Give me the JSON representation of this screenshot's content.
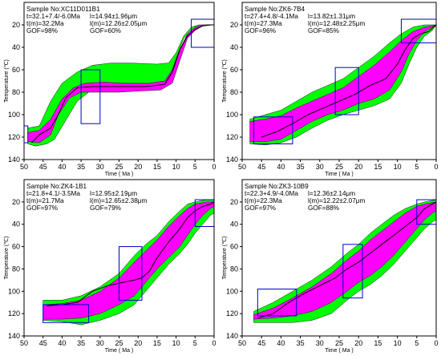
{
  "colors": {
    "good_envelope": "#00ff00",
    "acceptable_envelope": "#ff00ff",
    "best_fit_path": "#000000",
    "constraint_box": "#0000cc",
    "frame": "#000000"
  },
  "chart_data": [
    {
      "type": "line",
      "info": {
        "sample": "Sample No:XC11D011B1",
        "t": "t=32.1+7.4/-6.0Ma",
        "tm": "t(m)=32.2Ma",
        "gof_age": "GOF=98%",
        "l": "l=14.94±1.96μm",
        "lm": "l(m)=12.26±2.05μm",
        "gof_len": "GOF=60%"
      },
      "xlabel": "Time ( Ma )",
      "ylabel": "Temperature (℃)",
      "xlim": [
        50,
        0
      ],
      "ylim": [
        140,
        0
      ],
      "xticks": [
        "50",
        "45",
        "40",
        "35",
        "30",
        "25",
        "20",
        "15",
        "10",
        "5",
        "0"
      ],
      "yticks": [
        "140",
        "120",
        "100",
        "80",
        "60",
        "40",
        "20"
      ],
      "green_upper": [
        [
          49,
          126
        ],
        [
          47,
          128
        ],
        [
          44,
          126
        ],
        [
          42,
          122
        ],
        [
          39,
          105
        ],
        [
          36,
          88
        ],
        [
          33,
          80
        ],
        [
          30,
          76
        ],
        [
          25,
          75
        ],
        [
          20,
          74
        ],
        [
          15,
          72
        ],
        [
          12,
          70
        ],
        [
          10,
          50
        ],
        [
          8,
          32
        ],
        [
          6,
          25
        ],
        [
          4,
          22
        ],
        [
          2,
          20
        ],
        [
          0,
          20
        ]
      ],
      "green_lower": [
        [
          49,
          112
        ],
        [
          46,
          110
        ],
        [
          43,
          88
        ],
        [
          40,
          72
        ],
        [
          36,
          62
        ],
        [
          32,
          56
        ],
        [
          27,
          54
        ],
        [
          22,
          54
        ],
        [
          15,
          55
        ],
        [
          12,
          54
        ],
        [
          10,
          45
        ],
        [
          8,
          30
        ],
        [
          6,
          22
        ],
        [
          4,
          20
        ],
        [
          0,
          20
        ]
      ],
      "pink_upper": [
        [
          49,
          124
        ],
        [
          46,
          125
        ],
        [
          43,
          118
        ],
        [
          41,
          100
        ],
        [
          38,
          85
        ],
        [
          35,
          80
        ],
        [
          30,
          80
        ],
        [
          25,
          80
        ],
        [
          20,
          79
        ],
        [
          14,
          78
        ],
        [
          11,
          72
        ],
        [
          9,
          52
        ],
        [
          7,
          32
        ],
        [
          5,
          25
        ],
        [
          3,
          21
        ],
        [
          0,
          20
        ]
      ],
      "pink_lower": [
        [
          49,
          116
        ],
        [
          46,
          114
        ],
        [
          43,
          104
        ],
        [
          40,
          86
        ],
        [
          37,
          76
        ],
        [
          34,
          72
        ],
        [
          29,
          71
        ],
        [
          24,
          72
        ],
        [
          17,
          72
        ],
        [
          13,
          70
        ],
        [
          11,
          60
        ],
        [
          9,
          42
        ],
        [
          7,
          28
        ],
        [
          5,
          22
        ],
        [
          3,
          20
        ],
        [
          0,
          20
        ]
      ],
      "best_path": [
        [
          48,
          125
        ],
        [
          46,
          118
        ],
        [
          43,
          112
        ],
        [
          41,
          100
        ],
        [
          39,
          85
        ],
        [
          36,
          76
        ],
        [
          32,
          75
        ],
        [
          25,
          75
        ],
        [
          18,
          75
        ],
        [
          13,
          73
        ],
        [
          11,
          62
        ],
        [
          9,
          42
        ],
        [
          7,
          30
        ],
        [
          5,
          24
        ],
        [
          3,
          21
        ],
        [
          1,
          20
        ],
        [
          0,
          20
        ]
      ],
      "boxes": [
        [
          50,
          49,
          110,
          125
        ],
        [
          35,
          30,
          60,
          108
        ],
        [
          6,
          0,
          15,
          40
        ]
      ]
    },
    {
      "type": "line",
      "info": {
        "sample": "Sample No:ZK6-7B4",
        "t": "t=27.4+4.8/-4.1Ma",
        "tm": "t(m)=27.3Ma",
        "gof_age": "GOF=96%",
        "l": "l=13.82±1.31μm",
        "lm": "l(m)=12.48±2.25μm",
        "gof_len": "GOF=85%"
      },
      "xlabel": "Time ( Ma )",
      "ylabel": "Temperature (℃)",
      "xlim": [
        50,
        0
      ],
      "ylim": [
        140,
        0
      ],
      "xticks": [
        "50",
        "45",
        "40",
        "35",
        "30",
        "25",
        "20",
        "15",
        "10",
        "5",
        "0"
      ],
      "yticks": [
        "140",
        "120",
        "100",
        "80",
        "60",
        "40",
        "20"
      ],
      "green_upper": [
        [
          48,
          126
        ],
        [
          44,
          127
        ],
        [
          40,
          125
        ],
        [
          36,
          120
        ],
        [
          32,
          112
        ],
        [
          28,
          105
        ],
        [
          24,
          100
        ],
        [
          20,
          96
        ],
        [
          16,
          92
        ],
        [
          12,
          86
        ],
        [
          9,
          72
        ],
        [
          7,
          55
        ],
        [
          5,
          40
        ],
        [
          3,
          30
        ],
        [
          1,
          25
        ],
        [
          0,
          20
        ]
      ],
      "green_lower": [
        [
          48,
          104
        ],
        [
          44,
          100
        ],
        [
          40,
          96
        ],
        [
          36,
          88
        ],
        [
          32,
          80
        ],
        [
          28,
          74
        ],
        [
          24,
          68
        ],
        [
          20,
          58
        ],
        [
          16,
          48
        ],
        [
          12,
          36
        ],
        [
          9,
          28
        ],
        [
          6,
          22
        ],
        [
          3,
          20
        ],
        [
          0,
          20
        ]
      ],
      "pink_upper": [
        [
          48,
          124
        ],
        [
          44,
          124
        ],
        [
          40,
          122
        ],
        [
          36,
          114
        ],
        [
          32,
          106
        ],
        [
          28,
          100
        ],
        [
          24,
          96
        ],
        [
          20,
          90
        ],
        [
          16,
          86
        ],
        [
          12,
          78
        ],
        [
          9,
          62
        ],
        [
          7,
          46
        ],
        [
          5,
          34
        ],
        [
          3,
          26
        ],
        [
          0,
          20
        ]
      ],
      "pink_lower": [
        [
          48,
          106
        ],
        [
          44,
          104
        ],
        [
          40,
          101
        ],
        [
          36,
          94
        ],
        [
          32,
          88
        ],
        [
          28,
          82
        ],
        [
          24,
          76
        ],
        [
          20,
          66
        ],
        [
          16,
          56
        ],
        [
          12,
          44
        ],
        [
          9,
          34
        ],
        [
          6,
          26
        ],
        [
          3,
          22
        ],
        [
          0,
          20
        ]
      ],
      "best_path": [
        [
          45,
          120
        ],
        [
          41,
          115
        ],
        [
          37,
          108
        ],
        [
          33,
          100
        ],
        [
          29,
          94
        ],
        [
          25,
          88
        ],
        [
          21,
          82
        ],
        [
          17,
          74
        ],
        [
          13,
          68
        ],
        [
          10,
          55
        ],
        [
          8,
          42
        ],
        [
          6,
          32
        ],
        [
          4,
          28
        ],
        [
          2,
          26
        ],
        [
          0,
          20
        ]
      ],
      "boxes": [
        [
          47,
          37,
          102,
          126
        ],
        [
          26,
          20,
          58,
          100
        ],
        [
          9,
          0,
          15,
          36
        ]
      ]
    },
    {
      "type": "line",
      "info": {
        "sample": "Sample No:ZK4-1B1",
        "t": "t=21.8+4.1/-3.5Ma",
        "tm": "t(m)=21.7Ma",
        "gof_age": "GOF=97%",
        "l": "l=12.95±2.19μm",
        "lm": "l(m)=12.65±2.38μm",
        "gof_len": "GOF=79%"
      },
      "xlabel": "Time ( Ma )",
      "ylabel": "Temperature (℃)",
      "xlim": [
        50,
        0
      ],
      "ylim": [
        140,
        0
      ],
      "xticks": [
        "50",
        "45",
        "40",
        "35",
        "30",
        "25",
        "20",
        "15",
        "10",
        "5",
        "0"
      ],
      "yticks": [
        "140",
        "120",
        "100",
        "80",
        "60",
        "40",
        "20"
      ],
      "green_upper": [
        [
          45,
          126
        ],
        [
          40,
          127
        ],
        [
          35,
          130
        ],
        [
          30,
          126
        ],
        [
          25,
          120
        ],
        [
          21,
          112
        ],
        [
          18,
          100
        ],
        [
          15,
          88
        ],
        [
          12,
          76
        ],
        [
          9,
          66
        ],
        [
          7,
          58
        ],
        [
          5,
          48
        ],
        [
          3,
          40
        ],
        [
          1,
          32
        ],
        [
          0,
          30
        ]
      ],
      "green_lower": [
        [
          45,
          108
        ],
        [
          40,
          108
        ],
        [
          35,
          104
        ],
        [
          30,
          96
        ],
        [
          25,
          84
        ],
        [
          21,
          68
        ],
        [
          18,
          58
        ],
        [
          15,
          50
        ],
        [
          12,
          38
        ],
        [
          9,
          28
        ],
        [
          7,
          22
        ],
        [
          5,
          20
        ],
        [
          2,
          18
        ],
        [
          0,
          18
        ]
      ],
      "pink_upper": [
        [
          45,
          125
        ],
        [
          40,
          125
        ],
        [
          35,
          124
        ],
        [
          30,
          120
        ],
        [
          25,
          112
        ],
        [
          21,
          104
        ],
        [
          18,
          92
        ],
        [
          15,
          80
        ],
        [
          12,
          70
        ],
        [
          9,
          60
        ],
        [
          7,
          50
        ],
        [
          5,
          40
        ],
        [
          3,
          32
        ],
        [
          1,
          26
        ],
        [
          0,
          24
        ]
      ],
      "pink_lower": [
        [
          45,
          112
        ],
        [
          40,
          111
        ],
        [
          35,
          108
        ],
        [
          30,
          100
        ],
        [
          25,
          88
        ],
        [
          21,
          74
        ],
        [
          18,
          64
        ],
        [
          15,
          54
        ],
        [
          12,
          42
        ],
        [
          9,
          32
        ],
        [
          7,
          26
        ],
        [
          5,
          22
        ],
        [
          2,
          20
        ],
        [
          0,
          20
        ]
      ],
      "best_path": [
        [
          44,
          113
        ],
        [
          40,
          112
        ],
        [
          36,
          110
        ],
        [
          32,
          100
        ],
        [
          28,
          95
        ],
        [
          24,
          92
        ],
        [
          21,
          90
        ],
        [
          19,
          88
        ],
        [
          17,
          82
        ],
        [
          15,
          70
        ],
        [
          12,
          56
        ],
        [
          9,
          44
        ],
        [
          7,
          34
        ],
        [
          5,
          28
        ],
        [
          3,
          24
        ],
        [
          1,
          22
        ],
        [
          0,
          20
        ]
      ],
      "boxes": [
        [
          45,
          33,
          112,
          128
        ],
        [
          25,
          19,
          60,
          108
        ],
        [
          5,
          0,
          18,
          42
        ]
      ]
    },
    {
      "type": "line",
      "info": {
        "sample": "Sample No:ZK3-10B9",
        "t": "t=22.3+4.9/-4.0Ma",
        "tm": "t(m)=22.3Ma",
        "gof_age": "GOF=97%",
        "l": "l=12.36±2.14μm",
        "lm": "l(m)=12.22±2.07μm",
        "gof_len": "GOF=88%"
      },
      "xlabel": "Time ( Ma )",
      "ylabel": "Temperature (℃)",
      "xlim": [
        50,
        0
      ],
      "ylim": [
        140,
        0
      ],
      "xticks": [
        "50",
        "45",
        "40",
        "35",
        "30",
        "25",
        "20",
        "15",
        "10",
        "5",
        "0"
      ],
      "yticks": [
        "140",
        "120",
        "100",
        "80",
        "60",
        "40",
        "20"
      ],
      "green_upper": [
        [
          47,
          128
        ],
        [
          42,
          128
        ],
        [
          37,
          128
        ],
        [
          32,
          126
        ],
        [
          27,
          120
        ],
        [
          23,
          108
        ],
        [
          20,
          100
        ],
        [
          17,
          94
        ],
        [
          14,
          86
        ],
        [
          11,
          76
        ],
        [
          8,
          64
        ],
        [
          5,
          52
        ],
        [
          3,
          44
        ],
        [
          1,
          38
        ],
        [
          0,
          36
        ]
      ],
      "green_lower": [
        [
          47,
          118
        ],
        [
          42,
          110
        ],
        [
          37,
          100
        ],
        [
          32,
          90
        ],
        [
          27,
          78
        ],
        [
          23,
          66
        ],
        [
          20,
          58
        ],
        [
          17,
          48
        ],
        [
          14,
          40
        ],
        [
          11,
          32
        ],
        [
          8,
          26
        ],
        [
          5,
          22
        ],
        [
          3,
          20
        ],
        [
          0,
          18
        ]
      ],
      "pink_upper": [
        [
          47,
          125
        ],
        [
          42,
          124
        ],
        [
          37,
          122
        ],
        [
          32,
          118
        ],
        [
          27,
          110
        ],
        [
          23,
          100
        ],
        [
          20,
          92
        ],
        [
          17,
          86
        ],
        [
          14,
          78
        ],
        [
          11,
          68
        ],
        [
          8,
          56
        ],
        [
          5,
          44
        ],
        [
          3,
          36
        ],
        [
          1,
          30
        ],
        [
          0,
          28
        ]
      ],
      "pink_lower": [
        [
          47,
          121
        ],
        [
          42,
          115
        ],
        [
          37,
          106
        ],
        [
          32,
          96
        ],
        [
          27,
          84
        ],
        [
          23,
          72
        ],
        [
          20,
          64
        ],
        [
          17,
          54
        ],
        [
          14,
          46
        ],
        [
          11,
          38
        ],
        [
          8,
          30
        ],
        [
          5,
          24
        ],
        [
          3,
          22
        ],
        [
          0,
          20
        ]
      ],
      "best_path": [
        [
          46,
          124
        ],
        [
          42,
          120
        ],
        [
          38,
          110
        ],
        [
          34,
          102
        ],
        [
          30,
          95
        ],
        [
          26,
          88
        ],
        [
          23,
          80
        ],
        [
          20,
          74
        ],
        [
          17,
          66
        ],
        [
          14,
          58
        ],
        [
          11,
          50
        ],
        [
          8,
          42
        ],
        [
          5,
          34
        ],
        [
          3,
          26
        ],
        [
          1,
          22
        ],
        [
          0,
          20
        ]
      ],
      "boxes": [
        [
          46,
          36,
          98,
          122
        ],
        [
          24,
          19,
          58,
          106
        ],
        [
          5,
          0,
          18,
          40
        ]
      ]
    }
  ]
}
